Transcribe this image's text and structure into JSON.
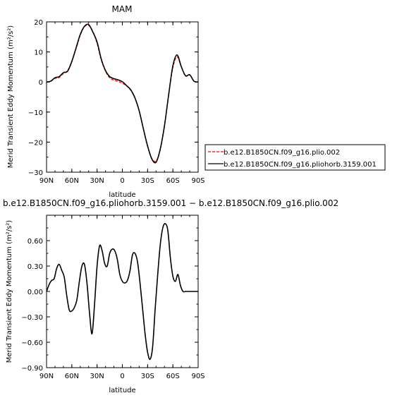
{
  "chart_data": [
    {
      "type": "line",
      "title": "MAM",
      "xlabel": "latitude",
      "ylabel": "Merid Transient Eddy Momentum (m²/s²)",
      "x_tick_labels": [
        "90N",
        "60N",
        "30N",
        "0",
        "30S",
        "60S",
        "90S"
      ],
      "x_tick_values": [
        90,
        60,
        30,
        0,
        -30,
        -60,
        -90
      ],
      "y_tick_labels": [
        "20",
        "10",
        "0",
        "−10",
        "−20",
        "−30"
      ],
      "y_tick_values": [
        20,
        10,
        0,
        -10,
        -20,
        -30
      ],
      "xlim": [
        90,
        -90
      ],
      "ylim": [
        -30,
        20
      ],
      "grid": false,
      "legend_placement": "right",
      "series": [
        {
          "name": "b.e12.B1850CN.f09_g16.plio.002",
          "color": "#ff0000",
          "dash": "dashed",
          "x": [
            90,
            85,
            80,
            75,
            70,
            65,
            60,
            55,
            50,
            45,
            40,
            35,
            30,
            25,
            20,
            15,
            10,
            5,
            0,
            -5,
            -10,
            -15,
            -20,
            -25,
            -30,
            -35,
            -40,
            -45,
            -50,
            -55,
            -60,
            -65,
            -70,
            -75,
            -80,
            -85,
            -90
          ],
          "y": [
            0,
            0.2,
            1.2,
            1.5,
            2.8,
            3.8,
            7.0,
            11.0,
            15.5,
            18.4,
            18.8,
            16.8,
            12.8,
            7.3,
            3.6,
            1.4,
            0.6,
            0.2,
            -0.4,
            -1.3,
            -2.8,
            -5.4,
            -9.7,
            -15.7,
            -21.5,
            -25.4,
            -26.3,
            -22.5,
            -14.5,
            -4.3,
            4.8,
            8.4,
            5.0,
            2.0,
            2.3,
            0.3,
            0
          ]
        },
        {
          "name": "b.e12.B1850CN.f09_g16.pliohorb.3159.001",
          "color": "#000000",
          "dash": "solid",
          "x": [
            90,
            85,
            80,
            75,
            70,
            65,
            60,
            55,
            50,
            45,
            40,
            35,
            30,
            25,
            20,
            15,
            10,
            5,
            0,
            -5,
            -10,
            -15,
            -20,
            -25,
            -30,
            -35,
            -40,
            -45,
            -50,
            -55,
            -60,
            -65,
            -70,
            -75,
            -80,
            -85,
            -90
          ],
          "y": [
            0,
            0.3,
            1.4,
            1.8,
            3.1,
            3.6,
            6.8,
            11.3,
            15.8,
            18.5,
            19.1,
            16.6,
            13.3,
            7.6,
            3.8,
            1.8,
            1.1,
            0.7,
            0.1,
            -1.2,
            -2.6,
            -5.3,
            -9.6,
            -15.6,
            -21.3,
            -25.6,
            -26.7,
            -22.3,
            -14.6,
            -4.2,
            5.4,
            9.0,
            5.1,
            2.1,
            2.4,
            0.3,
            0
          ]
        }
      ]
    },
    {
      "type": "line",
      "title": "b.e12.B1850CN.f09_g16.pliohorb.3159.001 − b.e12.B1850CN.f09_g16.plio.002",
      "xlabel": "latitude",
      "ylabel": "Merid Transient Eddy Momentum (m²/s²)",
      "x_tick_labels": [
        "90N",
        "60N",
        "30N",
        "0",
        "30S",
        "60S",
        "90S"
      ],
      "x_tick_values": [
        90,
        60,
        30,
        0,
        -30,
        -60,
        -90
      ],
      "y_tick_labels": [
        "0.60",
        "0.30",
        "0.00",
        "−0.30",
        "−0.60",
        "−0.90"
      ],
      "y_tick_values": [
        0.6,
        0.3,
        0.0,
        -0.3,
        -0.6,
        -0.9
      ],
      "xlim": [
        90,
        -90
      ],
      "ylim": [
        -0.9,
        0.9
      ],
      "grid": false,
      "series": [
        {
          "color": "#000000",
          "x": [
            90,
            87,
            84,
            81,
            78,
            75,
            72,
            69,
            66,
            63,
            60,
            57,
            54,
            51,
            48,
            45,
            42,
            39,
            36,
            33,
            30,
            27,
            24,
            21,
            18,
            15,
            12,
            9,
            6,
            3,
            0,
            -3,
            -6,
            -9,
            -12,
            -15,
            -18,
            -21,
            -24,
            -27,
            -30,
            -33,
            -36,
            -39,
            -42,
            -45,
            -48,
            -51,
            -54,
            -57,
            -60,
            -63,
            -66,
            -69,
            -72,
            -75,
            -78,
            -81,
            -84,
            -87,
            -90
          ],
          "y": [
            0.0,
            0.08,
            0.13,
            0.15,
            0.27,
            0.32,
            0.25,
            0.17,
            -0.05,
            -0.22,
            -0.23,
            -0.19,
            -0.1,
            0.12,
            0.3,
            0.32,
            0.1,
            -0.25,
            -0.5,
            -0.15,
            0.3,
            0.54,
            0.48,
            0.33,
            0.3,
            0.45,
            0.5,
            0.48,
            0.38,
            0.2,
            0.12,
            0.1,
            0.13,
            0.24,
            0.43,
            0.45,
            0.35,
            0.1,
            -0.2,
            -0.5,
            -0.72,
            -0.8,
            -0.65,
            -0.2,
            0.2,
            0.55,
            0.75,
            0.8,
            0.72,
            0.4,
            0.18,
            0.12,
            0.2,
            0.07,
            0.0,
            0.0,
            0.0,
            0.0,
            0.0,
            0.0,
            0.0
          ]
        }
      ]
    }
  ]
}
